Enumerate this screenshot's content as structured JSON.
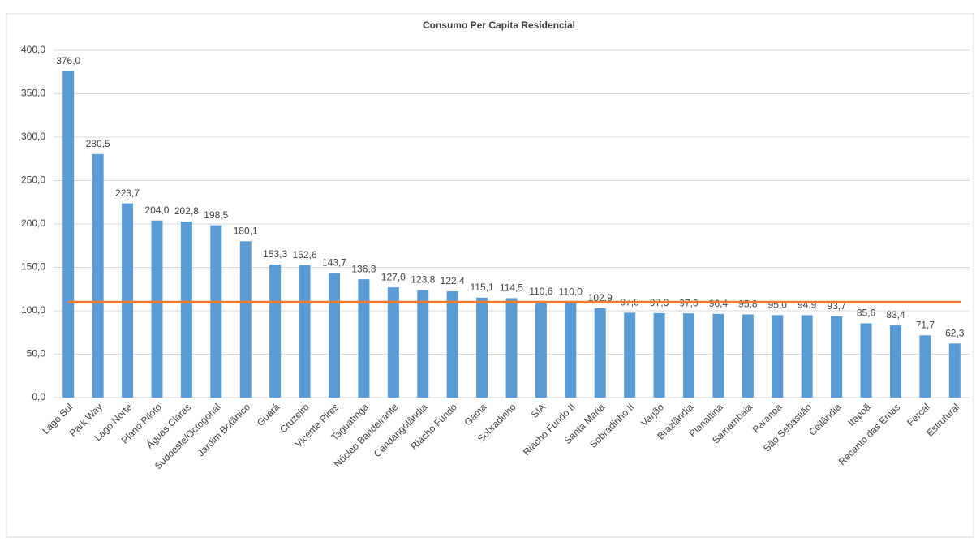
{
  "chart_data": {
    "type": "bar",
    "title": "Consumo Per Capita Residencial",
    "categories": [
      "Lago Sul",
      "Park Way",
      "Lago Norte",
      "Plano Piloto",
      "Águas Claras",
      "Sudoeste/Octogonal",
      "Jardim Botânico",
      "Guará",
      "Cruzeiro",
      "Vicente Pires",
      "Taguatinga",
      "Núcleo Bandeirante",
      "Candangolândia",
      "Riacho Fundo",
      "Gama",
      "Sobradinho",
      "SIA",
      "Riacho Fundo II",
      "Santa Maria",
      "Sobradinho II",
      "Varjão",
      "Brazlândia",
      "Planaltina",
      "Samambaia",
      "Paranoá",
      "São Sebastião",
      "Ceilândia",
      "Itapoã",
      "Recanto das Emas",
      "Fercal",
      "Estrutural"
    ],
    "values": [
      376.0,
      280.5,
      223.7,
      204.0,
      202.8,
      198.5,
      180.1,
      153.3,
      152.6,
      143.7,
      136.3,
      127.0,
      123.8,
      122.4,
      115.1,
      114.5,
      110.6,
      110.0,
      102.9,
      97.8,
      97.3,
      97.0,
      96.4,
      95.8,
      95.0,
      94.9,
      93.7,
      85.6,
      83.4,
      71.7,
      62.3
    ],
    "value_labels": [
      "376,0",
      "280,5",
      "223,7",
      "204,0",
      "202,8",
      "198,5",
      "180,1",
      "153,3",
      "152,6",
      "143,7",
      "136,3",
      "127,0",
      "123,8",
      "122,4",
      "115,1",
      "114,5",
      "110,6",
      "110,0",
      "102,9",
      "97,8",
      "97,3",
      "97,0",
      "96,4",
      "95,8",
      "95,0",
      "94,9",
      "93,7",
      "85,6",
      "83,4",
      "71,7",
      "62,3"
    ],
    "color": "#5b9bd5",
    "average_line": {
      "value": 110,
      "color": "#ed7d31"
    },
    "ylim": [
      0,
      400
    ],
    "yticks": [
      {
        "value": 0,
        "label": "0,0"
      },
      {
        "value": 50,
        "label": "50,0"
      },
      {
        "value": 100,
        "label": "100,0"
      },
      {
        "value": 150,
        "label": "150,0"
      },
      {
        "value": 200,
        "label": "200,0"
      },
      {
        "value": 250,
        "label": "250,0"
      },
      {
        "value": 300,
        "label": "300,0"
      },
      {
        "value": 350,
        "label": "350,0"
      },
      {
        "value": 400,
        "label": "400,0"
      }
    ],
    "grid": true
  }
}
